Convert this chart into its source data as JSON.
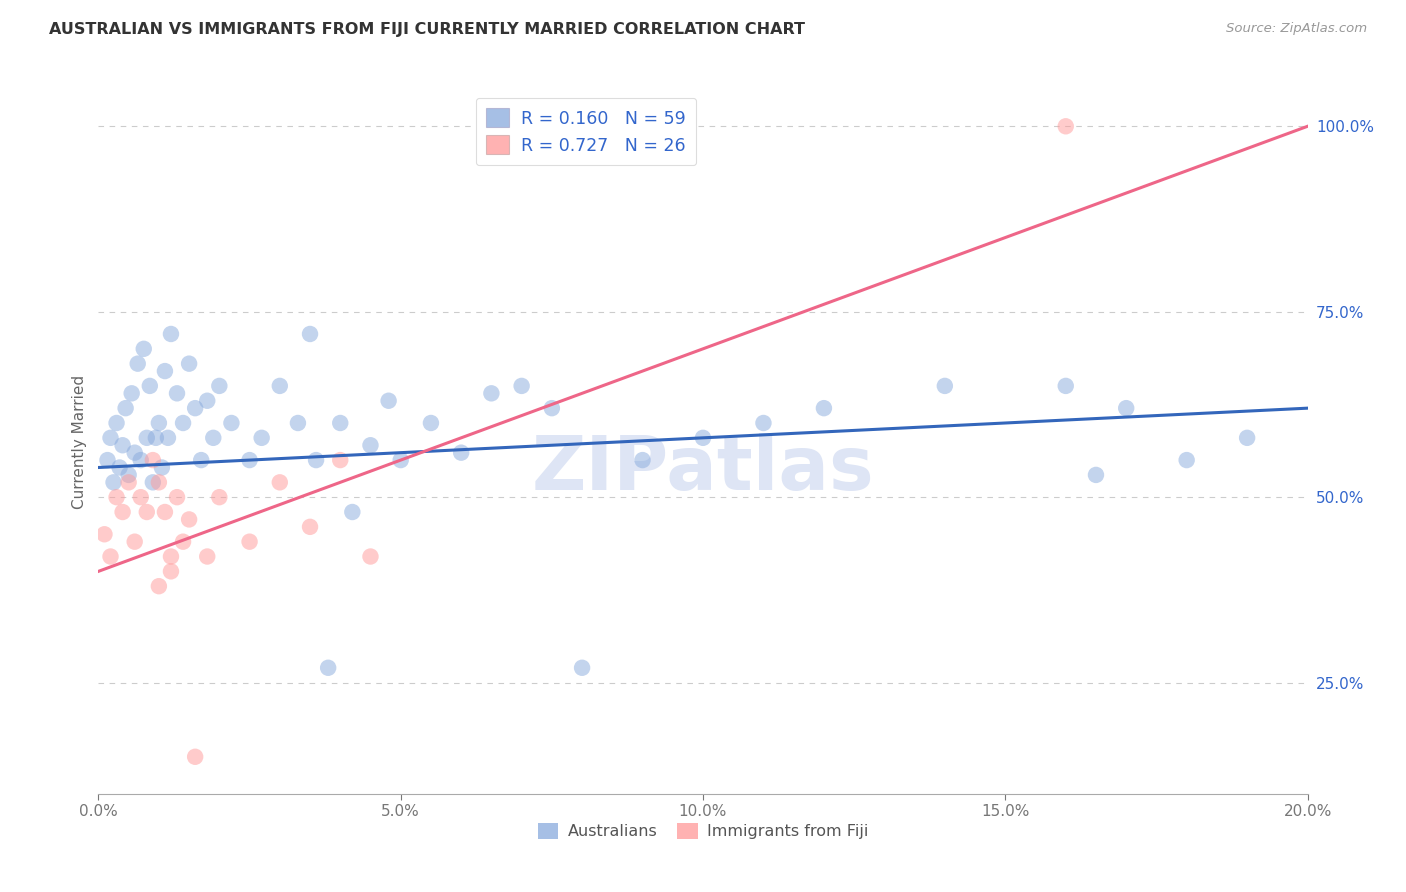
{
  "title": "AUSTRALIAN VS IMMIGRANTS FROM FIJI CURRENTLY MARRIED CORRELATION CHART",
  "source": "Source: ZipAtlas.com",
  "ylabel": "Currently Married",
  "legend_r_blue": "R = 0.160",
  "legend_n_blue": "N = 59",
  "legend_r_pink": "R = 0.727",
  "legend_n_pink": "N = 26",
  "legend_label_blue": "Australians",
  "legend_label_pink": "Immigrants from Fiji",
  "blue_color": "#88AADD",
  "pink_color": "#FF9999",
  "line_blue": "#3366BB",
  "line_pink": "#EE6688",
  "text_blue": "#3366CC",
  "text_dark": "#333333",
  "text_gray": "#999999",
  "watermark": "ZIPatlas",
  "watermark_color": "#DEE5F5",
  "grid_color": "#CCCCCC",
  "xmin": 0.0,
  "xmax": 20.0,
  "ymin": 10.0,
  "ymax": 105.0,
  "xticks": [
    0,
    5,
    10,
    15,
    20
  ],
  "yticks_right": [
    25,
    50,
    75,
    100
  ],
  "figwidth": 14.06,
  "figheight": 8.92,
  "dpi": 100,
  "blue_x": [
    0.15,
    0.2,
    0.25,
    0.3,
    0.35,
    0.4,
    0.45,
    0.5,
    0.55,
    0.6,
    0.65,
    0.7,
    0.75,
    0.8,
    0.85,
    0.9,
    0.95,
    1.0,
    1.05,
    1.1,
    1.15,
    1.2,
    1.3,
    1.4,
    1.5,
    1.6,
    1.7,
    1.8,
    1.9,
    2.0,
    2.2,
    2.5,
    2.7,
    3.0,
    3.3,
    3.5,
    3.6,
    3.8,
    4.0,
    4.2,
    4.5,
    4.8,
    5.0,
    5.5,
    6.0,
    6.5,
    7.0,
    7.5,
    8.0,
    9.0,
    10.0,
    11.0,
    12.0,
    14.0,
    16.0,
    16.5,
    17.0,
    18.0,
    19.0
  ],
  "blue_y": [
    55,
    58,
    52,
    60,
    54,
    57,
    62,
    53,
    64,
    56,
    68,
    55,
    70,
    58,
    65,
    52,
    58,
    60,
    54,
    67,
    58,
    72,
    64,
    60,
    68,
    62,
    55,
    63,
    58,
    65,
    60,
    55,
    58,
    65,
    60,
    72,
    55,
    27,
    60,
    48,
    57,
    63,
    55,
    60,
    56,
    64,
    65,
    62,
    27,
    55,
    58,
    60,
    62,
    65,
    65,
    53,
    62,
    55,
    58
  ],
  "pink_x": [
    0.1,
    0.2,
    0.3,
    0.4,
    0.5,
    0.6,
    0.7,
    0.8,
    0.9,
    1.0,
    1.1,
    1.2,
    1.3,
    1.4,
    1.5,
    1.6,
    1.8,
    2.0,
    2.5,
    3.0,
    3.5,
    4.0,
    4.5,
    1.0,
    1.2,
    16.0
  ],
  "pink_y": [
    45,
    42,
    50,
    48,
    52,
    44,
    50,
    48,
    55,
    52,
    48,
    42,
    50,
    44,
    47,
    15,
    42,
    50,
    44,
    52,
    46,
    55,
    42,
    38,
    40,
    100
  ],
  "blue_line_x0": 0,
  "blue_line_x1": 20,
  "blue_line_y0": 54,
  "blue_line_y1": 62,
  "pink_line_x0": 0,
  "pink_line_x1": 20,
  "pink_line_y0": 40,
  "pink_line_y1": 100
}
